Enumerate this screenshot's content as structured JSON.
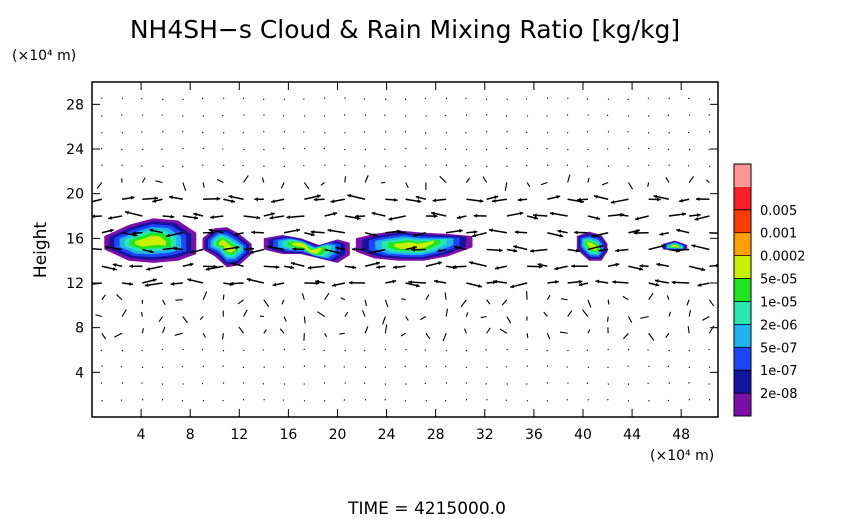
{
  "chart_data": {
    "type": "heatmap",
    "title": "NH4SH−s Cloud & Rain Mixing Ratio [kg/kg]",
    "ylabel": "Height",
    "xunit": "(×10⁴ m)",
    "yunit": "(×10⁴ m)",
    "footer": "TIME  =  4215000.0",
    "xlim": [
      0,
      51
    ],
    "ylim": [
      0,
      30
    ],
    "xticks": [
      4,
      8,
      12,
      16,
      20,
      24,
      28,
      32,
      36,
      40,
      44,
      48
    ],
    "yticks": [
      4,
      8,
      12,
      16,
      20,
      24,
      28
    ],
    "grid": false,
    "colorbar": {
      "levels": [
        "2e-08",
        "1e-07",
        "5e-07",
        "2e-06",
        "1e-05",
        "5e-05",
        "0.0002",
        "0.001",
        "0.005"
      ],
      "colors": [
        "#7b0fa8",
        "#1414a0",
        "#1e46ff",
        "#1eb4f0",
        "#28e6b4",
        "#1ee61e",
        "#c8f000",
        "#ffa000",
        "#ff3c00",
        "#ff1e28",
        "#ff9696"
      ]
    },
    "clouds": [
      {
        "x": [
          1.0,
          3.0,
          5.0,
          7.0,
          8.5
        ],
        "ytop": [
          16.2,
          17.2,
          17.8,
          17.6,
          16.5
        ],
        "ybottom": [
          15.0,
          14.0,
          13.8,
          14.0,
          14.6
        ]
      },
      {
        "x": [
          9.0,
          10.0,
          11.0,
          12.0,
          13.0
        ],
        "ytop": [
          16.0,
          16.9,
          17.0,
          16.4,
          15.5
        ],
        "ybottom": [
          15.0,
          14.4,
          13.4,
          13.6,
          14.6
        ]
      },
      {
        "x": [
          14.0,
          15.5,
          17.0,
          18.5,
          20.0,
          21.0
        ],
        "ytop": [
          16.0,
          16.3,
          16.0,
          15.4,
          15.9,
          15.6
        ],
        "ybottom": [
          15.0,
          14.6,
          14.6,
          14.2,
          13.8,
          14.5
        ]
      },
      {
        "x": [
          21.5,
          23.0,
          25.0,
          27.0,
          29.0,
          31.0
        ],
        "ytop": [
          16.0,
          16.4,
          16.7,
          16.5,
          16.4,
          16.2
        ],
        "ybottom": [
          14.8,
          14.2,
          14.0,
          14.0,
          14.4,
          15.2
        ]
      },
      {
        "x": [
          39.5,
          40.5,
          41.5,
          42.0
        ],
        "ytop": [
          16.2,
          16.6,
          16.3,
          15.5
        ],
        "ybottom": [
          15.0,
          14.0,
          14.0,
          14.8
        ]
      },
      {
        "x": [
          46.5,
          47.5,
          48.5
        ],
        "ytop": [
          15.5,
          15.8,
          15.4
        ],
        "ybottom": [
          15.0,
          14.9,
          15.0
        ]
      }
    ],
    "wind_band": {
      "ymin": 12,
      "ymax": 19.5
    }
  }
}
